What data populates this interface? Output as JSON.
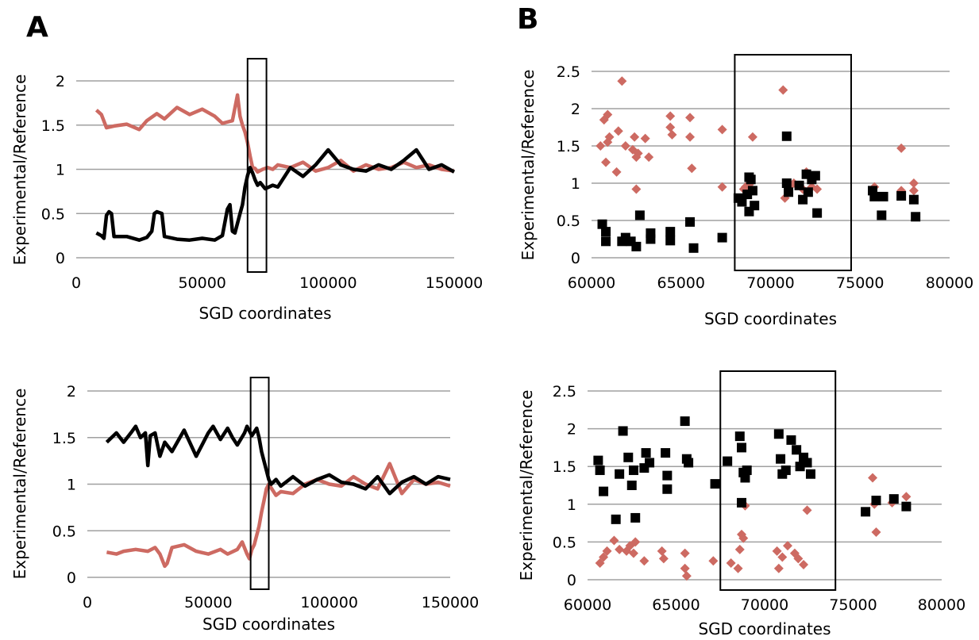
{
  "panel_labels": {
    "a": "A",
    "b": "B"
  },
  "colors": {
    "series_a": "#cd6a62",
    "series_b": "#000000",
    "grid": "#a0a0a0",
    "box": "#000000"
  },
  "chart_data": [
    {
      "id": "A_top",
      "type": "line",
      "xlabel": "SGD coordinates",
      "ylabel": "Experimental/Reference",
      "xlim": [
        0,
        150000
      ],
      "ylim": [
        0,
        2
      ],
      "xticks": [
        "0",
        "50000",
        "100000",
        "150000"
      ],
      "yticks": [
        "0",
        "0.5",
        "1",
        "1.5",
        "2"
      ],
      "grid": true,
      "highlight_box": {
        "x": [
          68000,
          75500
        ]
      },
      "series": [
        {
          "x": [
            8000,
            10000,
            12000,
            15000,
            20000,
            25000,
            28000,
            32000,
            35000,
            40000,
            45000,
            50000,
            55000,
            58000,
            62000,
            64000,
            65000,
            66000,
            67000,
            68000,
            69000,
            70000,
            71000,
            72000,
            74000,
            76000,
            78000,
            80000,
            85000,
            90000,
            95000,
            100000,
            105000,
            110000,
            115000,
            120000,
            125000,
            130000,
            135000,
            140000,
            145000,
            150000
          ],
          "values": [
            1.67,
            1.62,
            1.47,
            1.49,
            1.51,
            1.45,
            1.55,
            1.63,
            1.57,
            1.7,
            1.62,
            1.68,
            1.6,
            1.52,
            1.55,
            1.84,
            1.6,
            1.5,
            1.42,
            1.3,
            1.15,
            1.02,
            1.01,
            0.97,
            1.0,
            1.02,
            1.0,
            1.05,
            1.02,
            1.08,
            0.98,
            1.02,
            1.1,
            0.98,
            1.05,
            1.0,
            1.02,
            1.08,
            1.02,
            1.05,
            1.0,
            0.98
          ]
        },
        {
          "x": [
            8000,
            10000,
            11000,
            12000,
            13000,
            14000,
            15000,
            16000,
            20000,
            25000,
            28000,
            30000,
            31000,
            32000,
            34000,
            35000,
            40000,
            45000,
            50000,
            55000,
            58000,
            60000,
            61000,
            62000,
            63000,
            65000,
            66000,
            67000,
            68000,
            69000,
            70000,
            71000,
            72000,
            73000,
            75000,
            78000,
            80000,
            85000,
            90000,
            95000,
            100000,
            105000,
            110000,
            115000,
            120000,
            125000,
            130000,
            135000,
            140000,
            145000,
            150000
          ],
          "values": [
            0.28,
            0.25,
            0.22,
            0.48,
            0.52,
            0.5,
            0.24,
            0.24,
            0.24,
            0.2,
            0.23,
            0.3,
            0.5,
            0.52,
            0.5,
            0.24,
            0.21,
            0.2,
            0.22,
            0.2,
            0.25,
            0.55,
            0.6,
            0.3,
            0.28,
            0.5,
            0.6,
            0.8,
            0.93,
            1.02,
            0.96,
            0.88,
            0.82,
            0.85,
            0.78,
            0.82,
            0.8,
            1.02,
            0.92,
            1.05,
            1.22,
            1.05,
            1.0,
            0.98,
            1.05,
            1.0,
            1.1,
            1.22,
            1.0,
            1.05,
            0.97
          ]
        }
      ]
    },
    {
      "id": "B_top",
      "type": "scatter",
      "xlabel": "SGD coordinates",
      "ylabel": "Experimental/Reference",
      "xlim": [
        60000,
        80000
      ],
      "ylim": [
        0,
        2.5
      ],
      "xticks": [
        "60000",
        "65000",
        "70000",
        "75000",
        "80000"
      ],
      "yticks": [
        "0",
        "0.5",
        "1",
        "1.5",
        "2",
        "2.5"
      ],
      "grid": true,
      "highlight_box": {
        "x": [
          68000,
          74500
        ]
      },
      "series": [
        {
          "marker": "diamond",
          "x": [
            60500,
            60700,
            60900,
            61000,
            60800,
            61500,
            61700,
            61900,
            62300,
            62400,
            62500,
            62600,
            63000,
            63200,
            62500,
            60900,
            61400,
            64400,
            64400,
            64500,
            65500,
            65500,
            65600,
            67300,
            67300,
            68600,
            69000,
            68800,
            68500,
            70700,
            70800,
            71000,
            71300,
            71800,
            72000,
            72300,
            72600,
            75800,
            77300,
            77300,
            78000,
            78000
          ],
          "values": [
            1.5,
            1.85,
            1.92,
            1.62,
            1.28,
            1.7,
            2.37,
            1.5,
            1.45,
            1.62,
            1.35,
            1.4,
            1.6,
            1.35,
            0.92,
            1.55,
            1.15,
            1.9,
            1.75,
            1.65,
            1.88,
            1.62,
            1.2,
            1.72,
            0.95,
            0.95,
            1.62,
            0.98,
            0.92,
            2.25,
            0.8,
            0.95,
            1.0,
            0.92,
            1.15,
            0.95,
            0.92,
            0.95,
            1.47,
            0.9,
            1.0,
            0.9
          ]
        },
        {
          "marker": "square",
          "x": [
            60600,
            60800,
            60800,
            61700,
            61900,
            62200,
            62500,
            62700,
            63300,
            63300,
            64400,
            64400,
            65500,
            65700,
            67300,
            68200,
            68400,
            68700,
            68800,
            68900,
            69000,
            69100,
            68800,
            70900,
            70900,
            71000,
            71600,
            71800,
            72000,
            72100,
            72300,
            72500,
            72600,
            75700,
            75800,
            76200,
            76300,
            77300,
            78000,
            78100
          ],
          "values": [
            0.45,
            0.35,
            0.22,
            0.22,
            0.27,
            0.22,
            0.15,
            0.57,
            0.33,
            0.25,
            0.35,
            0.23,
            0.48,
            0.13,
            0.27,
            0.8,
            0.75,
            0.85,
            1.08,
            1.05,
            0.9,
            0.7,
            0.62,
            1.63,
            1.0,
            0.88,
            0.97,
            0.78,
            1.12,
            0.88,
            1.05,
            1.1,
            0.6,
            0.9,
            0.82,
            0.57,
            0.82,
            0.83,
            0.78,
            0.55
          ]
        }
      ]
    },
    {
      "id": "A_bottom",
      "type": "line",
      "xlabel": "SGD coordinates",
      "ylabel": "Experimental/Reference",
      "xlim": [
        0,
        150000
      ],
      "ylim": [
        0,
        2
      ],
      "xticks": [
        "0",
        "50000",
        "100000",
        "150000"
      ],
      "yticks": [
        "0",
        "0.5",
        "1",
        "1.5",
        "2"
      ],
      "grid": true,
      "highlight_box": {
        "x": [
          67500,
          75000
        ]
      },
      "series": [
        {
          "x": [
            8000,
            12000,
            15000,
            20000,
            25000,
            28000,
            30000,
            32000,
            33000,
            35000,
            40000,
            45000,
            50000,
            55000,
            58000,
            62000,
            64000,
            66000,
            67000,
            68000,
            69000,
            70000,
            71000,
            72000,
            73000,
            74000,
            75000,
            78000,
            80000,
            85000,
            90000,
            95000,
            100000,
            105000,
            110000,
            115000,
            120000,
            125000,
            130000,
            135000,
            140000,
            145000,
            150000
          ],
          "values": [
            0.27,
            0.25,
            0.28,
            0.3,
            0.28,
            0.32,
            0.25,
            0.12,
            0.15,
            0.32,
            0.35,
            0.28,
            0.25,
            0.3,
            0.25,
            0.3,
            0.38,
            0.25,
            0.2,
            0.3,
            0.35,
            0.45,
            0.55,
            0.7,
            0.82,
            0.95,
            1.0,
            0.88,
            0.92,
            0.9,
            1.0,
            1.05,
            1.0,
            0.98,
            1.08,
            1.0,
            0.95,
            1.22,
            0.9,
            1.05,
            1.0,
            1.02,
            0.98
          ]
        },
        {
          "x": [
            8000,
            10000,
            12000,
            15000,
            18000,
            20000,
            22000,
            24000,
            25000,
            26000,
            28000,
            30000,
            32000,
            35000,
            40000,
            45000,
            50000,
            52000,
            55000,
            58000,
            60000,
            62000,
            65000,
            66000,
            68000,
            70000,
            71000,
            72000,
            73000,
            74000,
            75000,
            76000,
            78000,
            80000,
            85000,
            90000,
            95000,
            100000,
            105000,
            110000,
            115000,
            120000,
            125000,
            130000,
            135000,
            140000,
            145000,
            150000
          ],
          "values": [
            1.45,
            1.5,
            1.55,
            1.45,
            1.55,
            1.62,
            1.5,
            1.55,
            1.2,
            1.52,
            1.55,
            1.3,
            1.45,
            1.35,
            1.58,
            1.3,
            1.55,
            1.62,
            1.48,
            1.6,
            1.5,
            1.42,
            1.55,
            1.62,
            1.52,
            1.6,
            1.5,
            1.35,
            1.25,
            1.15,
            1.05,
            1.0,
            1.05,
            0.98,
            1.08,
            0.98,
            1.05,
            1.1,
            1.02,
            1.0,
            0.95,
            1.08,
            0.9,
            1.02,
            1.08,
            1.0,
            1.08,
            1.05
          ]
        }
      ]
    },
    {
      "id": "B_bottom",
      "type": "scatter",
      "xlabel": "SGD coordinates",
      "ylabel": "Experimental/Reference",
      "xlim": [
        60000,
        80000
      ],
      "ylim": [
        0,
        2.5
      ],
      "xticks": [
        "60000",
        "65000",
        "70000",
        "75000",
        "80000"
      ],
      "yticks": [
        "0",
        "0.5",
        "1",
        "1.5",
        "2",
        "2.5"
      ],
      "grid": true,
      "highlight_box": {
        "x": [
          67500,
          74000
        ]
      },
      "series": [
        {
          "marker": "diamond",
          "x": [
            60700,
            60900,
            61100,
            61500,
            61800,
            62200,
            62400,
            62600,
            62700,
            63200,
            64200,
            64300,
            65500,
            65500,
            65600,
            67100,
            68100,
            68500,
            68600,
            68700,
            68800,
            68900,
            70700,
            70800,
            71000,
            71300,
            71700,
            71900,
            72200,
            72400,
            76100,
            76200,
            76300,
            77200,
            78000
          ],
          "values": [
            0.22,
            0.3,
            0.38,
            0.52,
            0.4,
            0.38,
            0.45,
            0.35,
            0.5,
            0.25,
            0.38,
            0.28,
            0.35,
            0.15,
            0.05,
            0.25,
            0.22,
            0.15,
            0.4,
            0.6,
            0.55,
            0.98,
            0.38,
            0.15,
            0.3,
            0.45,
            0.35,
            0.28,
            0.2,
            0.92,
            1.35,
            1.0,
            0.63,
            1.02,
            1.1
          ]
        },
        {
          "marker": "square",
          "x": [
            60600,
            60700,
            60900,
            61600,
            61800,
            62000,
            62300,
            62500,
            62600,
            62700,
            63300,
            63200,
            63500,
            64400,
            64500,
            64500,
            65500,
            65600,
            65700,
            67200,
            67900,
            68600,
            68700,
            68800,
            68900,
            69000,
            68700,
            70800,
            70900,
            71000,
            71200,
            71500,
            71800,
            72000,
            72200,
            72400,
            72600,
            75700,
            76300,
            77300,
            78000
          ],
          "values": [
            1.58,
            1.45,
            1.17,
            0.8,
            1.4,
            1.97,
            1.62,
            1.25,
            1.45,
            0.82,
            1.68,
            1.48,
            1.55,
            1.68,
            1.38,
            1.2,
            2.1,
            1.6,
            1.55,
            1.27,
            1.57,
            1.9,
            1.75,
            1.42,
            1.35,
            1.45,
            1.02,
            1.93,
            1.6,
            1.4,
            1.45,
            1.85,
            1.72,
            1.5,
            1.62,
            1.55,
            1.4,
            0.9,
            1.05,
            1.07,
            0.97
          ]
        }
      ]
    }
  ]
}
